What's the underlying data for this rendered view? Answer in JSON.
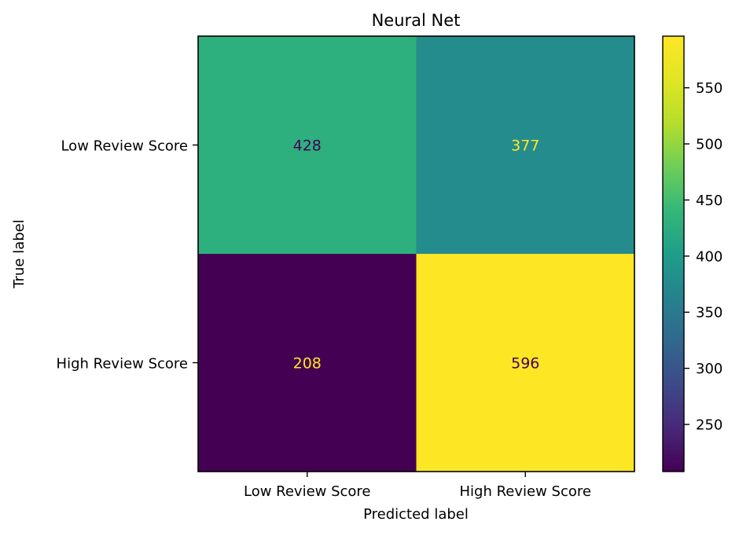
{
  "chart_data": {
    "type": "heatmap",
    "title": "Neural Net",
    "xlabel": "Predicted label",
    "ylabel": "True label",
    "x_categories": [
      "Low Review Score",
      "High Review Score"
    ],
    "y_categories": [
      "Low Review Score",
      "High Review Score"
    ],
    "values": [
      [
        428,
        377
      ],
      [
        208,
        596
      ]
    ],
    "colormap": "viridis",
    "value_range": [
      208,
      596
    ],
    "colorbar_ticks": [
      250,
      300,
      350,
      400,
      450,
      500,
      550
    ],
    "grid": false,
    "cell_text_colors": {
      "on_dark": "#fde725",
      "on_light": "#440154"
    }
  }
}
